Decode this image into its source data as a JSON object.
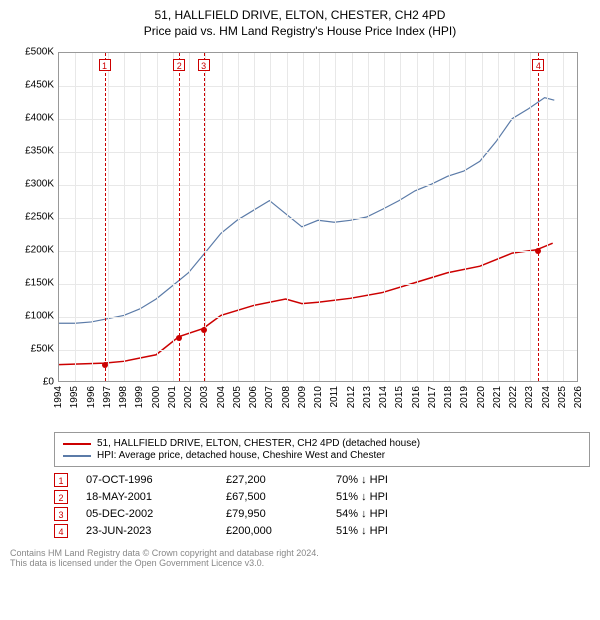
{
  "title_line1": "51, HALLFIELD DRIVE, ELTON, CHESTER, CH2 4PD",
  "title_line2": "Price paid vs. HM Land Registry's House Price Index (HPI)",
  "chart": {
    "type": "line",
    "background": "#ffffff",
    "border_color": "#999999",
    "grid_color": "#e8e8e8",
    "x": {
      "min": 1994,
      "max": 2026,
      "ticks": [
        1994,
        1995,
        1996,
        1997,
        1998,
        1999,
        2000,
        2001,
        2002,
        2003,
        2004,
        2005,
        2006,
        2007,
        2008,
        2009,
        2010,
        2011,
        2012,
        2013,
        2014,
        2015,
        2016,
        2017,
        2018,
        2019,
        2020,
        2021,
        2022,
        2023,
        2024,
        2025,
        2026
      ]
    },
    "y": {
      "min": 0,
      "max": 500000,
      "ticks": [
        0,
        50000,
        100000,
        150000,
        200000,
        250000,
        300000,
        350000,
        400000,
        450000,
        500000
      ],
      "tick_labels": [
        "£0",
        "£50K",
        "£100K",
        "£150K",
        "£200K",
        "£250K",
        "£300K",
        "£350K",
        "£400K",
        "£450K",
        "£500K"
      ]
    },
    "series": [
      {
        "name": "property",
        "color": "#cc0000",
        "width": 1.5,
        "points": [
          [
            1994,
            25000
          ],
          [
            1996.8,
            27200
          ],
          [
            1998,
            30000
          ],
          [
            2000,
            40000
          ],
          [
            2001.4,
            67500
          ],
          [
            2002.9,
            79950
          ],
          [
            2004,
            100000
          ],
          [
            2006,
            115000
          ],
          [
            2008,
            125000
          ],
          [
            2009,
            118000
          ],
          [
            2010,
            120000
          ],
          [
            2012,
            126000
          ],
          [
            2014,
            135000
          ],
          [
            2016,
            150000
          ],
          [
            2018,
            165000
          ],
          [
            2020,
            175000
          ],
          [
            2022,
            195000
          ],
          [
            2023.5,
            200000
          ],
          [
            2024.5,
            210000
          ]
        ]
      },
      {
        "name": "hpi",
        "color": "#5b7ba8",
        "width": 1.2,
        "points": [
          [
            1994,
            88000
          ],
          [
            1995,
            88000
          ],
          [
            1996,
            90000
          ],
          [
            1997,
            95000
          ],
          [
            1998,
            100000
          ],
          [
            1999,
            110000
          ],
          [
            2000,
            125000
          ],
          [
            2001,
            145000
          ],
          [
            2002,
            165000
          ],
          [
            2003,
            195000
          ],
          [
            2004,
            225000
          ],
          [
            2005,
            245000
          ],
          [
            2006,
            260000
          ],
          [
            2007,
            275000
          ],
          [
            2008,
            255000
          ],
          [
            2009,
            235000
          ],
          [
            2010,
            245000
          ],
          [
            2011,
            242000
          ],
          [
            2012,
            245000
          ],
          [
            2013,
            250000
          ],
          [
            2014,
            262000
          ],
          [
            2015,
            275000
          ],
          [
            2016,
            290000
          ],
          [
            2017,
            300000
          ],
          [
            2018,
            312000
          ],
          [
            2019,
            320000
          ],
          [
            2020,
            335000
          ],
          [
            2021,
            365000
          ],
          [
            2022,
            400000
          ],
          [
            2023,
            415000
          ],
          [
            2024,
            432000
          ],
          [
            2024.6,
            428000
          ]
        ]
      }
    ],
    "markers": [
      {
        "n": "1",
        "year": 1996.8,
        "price": 27200,
        "color": "#cc0000"
      },
      {
        "n": "2",
        "year": 2001.4,
        "price": 67500,
        "color": "#cc0000"
      },
      {
        "n": "3",
        "year": 2002.9,
        "price": 79950,
        "color": "#cc0000"
      },
      {
        "n": "4",
        "year": 2023.5,
        "price": 200000,
        "color": "#cc0000"
      }
    ]
  },
  "legend": [
    {
      "color": "#cc0000",
      "label": "51, HALLFIELD DRIVE, ELTON, CHESTER, CH2 4PD (detached house)"
    },
    {
      "color": "#5b7ba8",
      "label": "HPI: Average price, detached house, Cheshire West and Chester"
    }
  ],
  "transactions": [
    {
      "n": "1",
      "date": "07-OCT-1996",
      "price": "£27,200",
      "delta": "70% ↓ HPI"
    },
    {
      "n": "2",
      "date": "18-MAY-2001",
      "price": "£67,500",
      "delta": "51% ↓ HPI"
    },
    {
      "n": "3",
      "date": "05-DEC-2002",
      "price": "£79,950",
      "delta": "54% ↓ HPI"
    },
    {
      "n": "4",
      "date": "23-JUN-2023",
      "price": "£200,000",
      "delta": "51% ↓ HPI"
    }
  ],
  "footer_line1": "Contains HM Land Registry data © Crown copyright and database right 2024.",
  "footer_line2": "This data is licensed under the Open Government Licence v3.0."
}
